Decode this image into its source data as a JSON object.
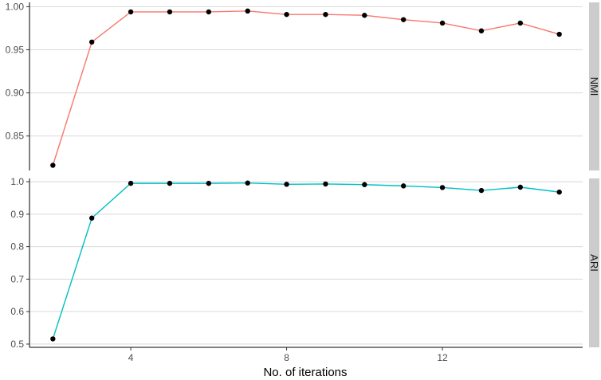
{
  "chart_data": {
    "type": "line",
    "xlabel": "No. of iterations",
    "x_ticks": [
      4,
      8,
      12
    ],
    "xlim": [
      1.4,
      15.6
    ],
    "x": [
      2,
      3,
      4,
      5,
      6,
      7,
      8,
      9,
      10,
      11,
      12,
      13,
      14,
      15
    ],
    "grid": "horizontal",
    "point_color": "#000000",
    "panels": [
      {
        "strip_label": "NMI",
        "color": "#F8766D",
        "ylim": [
          0.81,
          1.005
        ],
        "y_ticks": [
          0.85,
          0.9,
          0.95,
          1.0
        ],
        "y_tick_labels": [
          "0.85",
          "0.90",
          "0.95",
          "1.00"
        ],
        "values": [
          0.816,
          0.959,
          0.994,
          0.994,
          0.994,
          0.995,
          0.991,
          0.991,
          0.99,
          0.985,
          0.981,
          0.972,
          0.981,
          0.968
        ]
      },
      {
        "strip_label": "ARI",
        "color": "#00BFC4",
        "ylim": [
          0.49,
          1.01
        ],
        "y_ticks": [
          0.5,
          0.6,
          0.7,
          0.8,
          0.9,
          1.0
        ],
        "y_tick_labels": [
          "0.5",
          "0.6",
          "0.7",
          "0.8",
          "0.9",
          "1.0"
        ],
        "values": [
          0.516,
          0.888,
          0.995,
          0.995,
          0.995,
          0.996,
          0.992,
          0.993,
          0.991,
          0.987,
          0.982,
          0.973,
          0.983,
          0.968
        ]
      }
    ]
  }
}
